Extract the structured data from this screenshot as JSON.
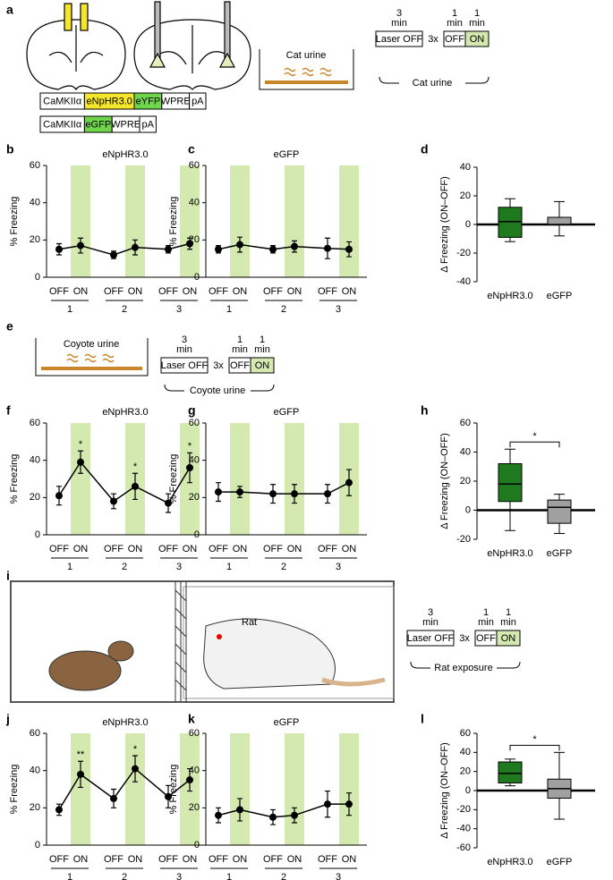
{
  "panel_labels": [
    "a",
    "b",
    "c",
    "d",
    "e",
    "f",
    "g",
    "h",
    "i",
    "j",
    "k",
    "l"
  ],
  "panel_a": {
    "constructs": [
      [
        {
          "text": "CaMKIIα",
          "color": "#ffffff"
        },
        {
          "text": "eNpHR3.0",
          "color": "#f5e62b"
        },
        {
          "text": "eYFP",
          "color": "#6fd64a"
        },
        {
          "text": "WPRE",
          "color": "#ffffff"
        },
        {
          "text": "pA",
          "color": "#ffffff"
        }
      ],
      [
        {
          "text": "CaMKIIα",
          "color": "#ffffff"
        },
        {
          "text": "eGFP",
          "color": "#6fd64a"
        },
        {
          "text": "WPRE",
          "color": "#ffffff"
        },
        {
          "text": "pA",
          "color": "#ffffff"
        }
      ]
    ],
    "chamber": "Cat urine",
    "protocol": {
      "pre_time": [
        "3",
        "min"
      ],
      "pre": "Laser OFF",
      "repeat": "3x",
      "off_time": [
        "1",
        "min"
      ],
      "on_time": [
        "1",
        "min"
      ],
      "off": "OFF",
      "on": "ON",
      "stimulus": "Cat urine"
    }
  },
  "panel_e": {
    "chamber": "Coyote urine",
    "protocol": {
      "pre_time": [
        "3",
        "min"
      ],
      "pre": "Laser OFF",
      "repeat": "3x",
      "off_time": [
        "1",
        "min"
      ],
      "on_time": [
        "1",
        "min"
      ],
      "off": "OFF",
      "on": "ON",
      "stimulus": "Coyote urine"
    }
  },
  "panel_i": {
    "animal": "Rat",
    "protocol": {
      "pre_time": [
        "3",
        "min"
      ],
      "pre": "Laser OFF",
      "repeat": "3x",
      "off_time": [
        "1",
        "min"
      ],
      "on_time": [
        "1",
        "min"
      ],
      "off": "OFF",
      "on": "ON",
      "stimulus": "Rat exposure"
    }
  },
  "chart_data": [
    {
      "type": "line",
      "title": "eNpHR3.0",
      "ylabel": "% Freezing",
      "categories": [
        "OFF",
        "ON",
        "OFF",
        "ON",
        "OFF",
        "ON"
      ],
      "groups": [
        "1",
        "2",
        "3"
      ],
      "values": [
        15,
        17,
        12,
        16,
        15,
        18
      ],
      "errors": [
        3,
        4,
        2,
        4,
        2,
        3
      ],
      "ylim": [
        0,
        60
      ],
      "yticks": [
        0,
        20,
        40,
        60
      ],
      "color": "#000000",
      "band_color": "#d4e9b0"
    },
    {
      "type": "line",
      "title": "eGFP",
      "ylabel": "% Freezing",
      "categories": [
        "OFF",
        "ON",
        "OFF",
        "ON",
        "OFF",
        "ON"
      ],
      "groups": [
        "1",
        "2",
        "3"
      ],
      "values": [
        15,
        17.5,
        15,
        16.5,
        15.5,
        15
      ],
      "errors": [
        2,
        4,
        2,
        3,
        5.5,
        4
      ],
      "ylim": [
        0,
        60
      ],
      "yticks": [
        0,
        20,
        40,
        60
      ],
      "color": "#000000",
      "band_color": "#d4e9b0"
    },
    {
      "type": "box",
      "ylabel": "Δ Freezing (ON–OFF)",
      "categories": [
        "eNpHR3.0",
        "eGFP"
      ],
      "boxes": [
        {
          "color": "#1f7a1f",
          "min": -12,
          "q1": -9,
          "median": 2,
          "q3": 12,
          "max": 18
        },
        {
          "color": "#a0a0a0",
          "min": -8,
          "q1": 0,
          "median": 0,
          "q3": 5,
          "max": 16
        }
      ],
      "ylim": [
        -40,
        40
      ],
      "yticks": [
        -40,
        -20,
        0,
        20,
        40
      ]
    },
    {
      "type": "line",
      "title": "eNpHR3.0",
      "ylabel": "% Freezing",
      "categories": [
        "OFF",
        "ON",
        "OFF",
        "ON",
        "OFF",
        "ON"
      ],
      "groups": [
        "1",
        "2",
        "3"
      ],
      "values": [
        21,
        39,
        18,
        26,
        17,
        36
      ],
      "errors": [
        5,
        6,
        4,
        7,
        5,
        8
      ],
      "significance": [
        null,
        "*",
        null,
        "*",
        null,
        "*"
      ],
      "ylim": [
        0,
        60
      ],
      "yticks": [
        0,
        20,
        40,
        60
      ],
      "color": "#000000",
      "band_color": "#d4e9b0"
    },
    {
      "type": "line",
      "title": "eGFP",
      "ylabel": "% Freezing",
      "categories": [
        "OFF",
        "ON",
        "OFF",
        "ON",
        "OFF",
        "ON"
      ],
      "groups": [
        "1",
        "2",
        "3"
      ],
      "values": [
        23,
        23,
        22,
        22,
        22,
        28
      ],
      "errors": [
        5,
        3,
        5,
        5,
        5,
        7
      ],
      "ylim": [
        0,
        60
      ],
      "yticks": [
        0,
        20,
        40,
        60
      ],
      "color": "#000000",
      "band_color": "#d4e9b0"
    },
    {
      "type": "box",
      "ylabel": "Δ Freezing (ON–OFF)",
      "categories": [
        "eNpHR3.0",
        "eGFP"
      ],
      "boxes": [
        {
          "color": "#1f7a1f",
          "min": -14,
          "q1": 6,
          "median": 18,
          "q3": 32,
          "max": 42
        },
        {
          "color": "#a0a0a0",
          "min": -16,
          "q1": -9,
          "median": 2,
          "q3": 7,
          "max": 11
        }
      ],
      "significance": "*",
      "ylim": [
        -20,
        60
      ],
      "yticks": [
        -20,
        0,
        20,
        40,
        60
      ]
    },
    {
      "type": "line",
      "title": "eNpHR3.0",
      "ylabel": "% Freezing",
      "categories": [
        "OFF",
        "ON",
        "OFF",
        "ON",
        "OFF",
        "ON"
      ],
      "groups": [
        "1",
        "2",
        "3"
      ],
      "values": [
        19,
        38,
        25,
        41,
        26,
        35
      ],
      "errors": [
        3,
        7,
        5,
        7,
        6,
        6
      ],
      "significance": [
        null,
        "**",
        null,
        "*",
        null,
        null
      ],
      "ylim": [
        0,
        60
      ],
      "yticks": [
        0,
        20,
        40,
        60
      ],
      "color": "#000000",
      "band_color": "#d4e9b0"
    },
    {
      "type": "line",
      "title": "eGFP",
      "ylabel": "% Freezing",
      "categories": [
        "OFF",
        "ON",
        "OFF",
        "ON",
        "OFF",
        "ON"
      ],
      "groups": [
        "1",
        "2",
        "3"
      ],
      "values": [
        16,
        19,
        15,
        16,
        22,
        22
      ],
      "errors": [
        4,
        6,
        4,
        4,
        7,
        6
      ],
      "ylim": [
        0,
        60
      ],
      "yticks": [
        0,
        20,
        40,
        60
      ],
      "color": "#000000",
      "band_color": "#d4e9b0"
    },
    {
      "type": "box",
      "ylabel": "Δ Freezing (ON–OFF)",
      "categories": [
        "eNpHR3.0",
        "eGFP"
      ],
      "boxes": [
        {
          "color": "#1f7a1f",
          "min": 5,
          "q1": 8,
          "median": 18,
          "q3": 30,
          "max": 33
        },
        {
          "color": "#a0a0a0",
          "min": -30,
          "q1": -8,
          "median": 2,
          "q3": 12,
          "max": 40
        }
      ],
      "significance": "*",
      "ylim": [
        -60,
        60
      ],
      "yticks": [
        -60,
        -40,
        -20,
        0,
        20,
        40,
        60
      ]
    }
  ]
}
